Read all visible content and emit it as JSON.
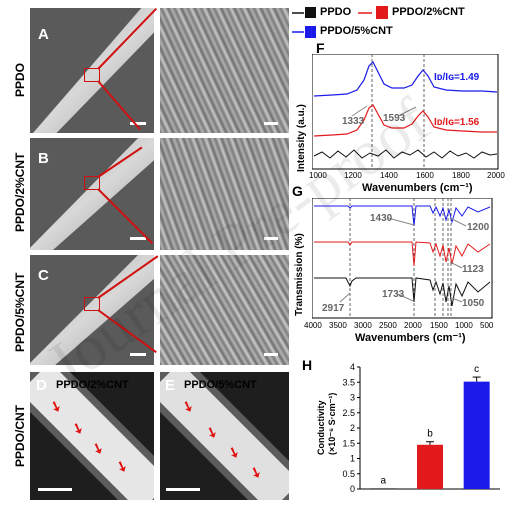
{
  "row_labels": {
    "ppdo": "PPDO",
    "cnt2": "PPDO/2%CNT",
    "cnt5": "PPDO/5%CNT",
    "ppdo_cnt": "PPDO/CNT"
  },
  "panel_letters": {
    "a": "A",
    "b": "B",
    "c": "C",
    "d": "D",
    "e": "E",
    "f": "F",
    "g": "G",
    "h": "H"
  },
  "fluor": {
    "d_label": "PPDO/2%CNT",
    "e_label": "PPDO/5%CNT"
  },
  "watermark": "Journal Pre-proof",
  "legend": [
    {
      "name": "PPDO",
      "color": "#111111"
    },
    {
      "name": "PPDO/2%CNT",
      "color": "#e31a1c"
    },
    {
      "name": "PPDO/5%CNT",
      "color": "#1a1aeb"
    }
  ],
  "raman": {
    "ylabel": "Intensity (a.u.)",
    "xlabel": "Wavenumbers (cm⁻¹)",
    "xticks": [
      "1000",
      "1200",
      "1400",
      "1600",
      "1800",
      "2000"
    ],
    "peak1": "1333",
    "peak2": "1593",
    "ratio_blue": "Iᴅ/Iɢ=1.49",
    "ratio_red": "Iᴅ/Iɢ=1.56"
  },
  "ftir": {
    "ylabel": "Transmission (%)",
    "xlabel": "Wavenumbers (cm⁻¹)",
    "xticks": [
      "4000",
      "3500",
      "3000",
      "2500",
      "2000",
      "1500",
      "1000",
      "500"
    ],
    "ann": {
      "a1430": "1430",
      "a1200": "1200",
      "a1123": "1123",
      "a2917": "2917",
      "a1733": "1733",
      "a1050": "1050"
    }
  },
  "chart_data": {
    "type": "bar",
    "categories": [
      "PPDO",
      "PPDO/2%CNT",
      "PPDO/5%CNT"
    ],
    "values": [
      0.02,
      1.45,
      3.52
    ],
    "errors": [
      0.0,
      0.1,
      0.15
    ],
    "colors": [
      "#111111",
      "#e31a1c",
      "#1a1aeb"
    ],
    "letters": [
      "a",
      "b",
      "c"
    ],
    "ylabel": "Conductivity (×10⁻⁶ S·cm⁻¹)",
    "ylim": [
      0,
      4
    ],
    "yticks": [
      "0",
      "0.5",
      "1",
      "1.5",
      "2",
      "2.5",
      "3",
      "3.5",
      "4"
    ]
  }
}
